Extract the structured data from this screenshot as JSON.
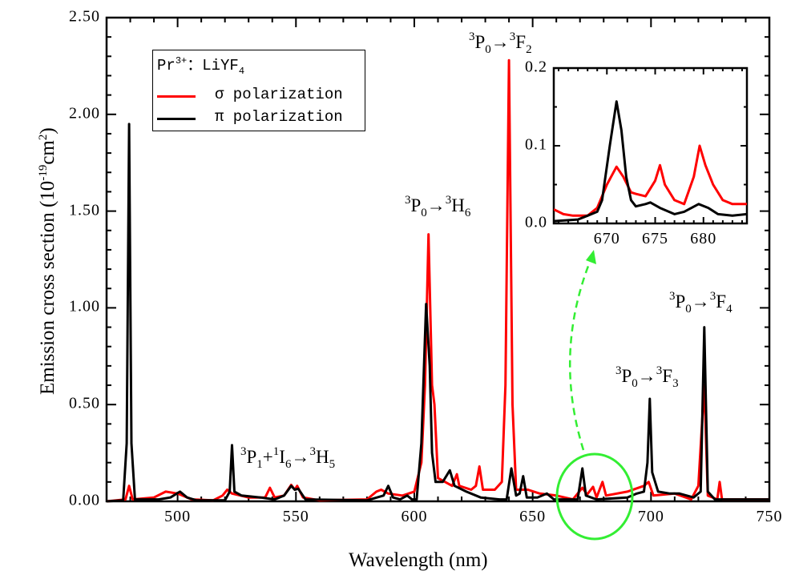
{
  "chart_data": {
    "type": "line",
    "xlabel": "Wavelength (nm)",
    "ylabel": {
      "main": "Emission cross section (10",
      "sup": "-19",
      "unit": "cm",
      "sup2": "2",
      "end": ")"
    },
    "xlim": [
      470,
      750
    ],
    "ylim": [
      0,
      2.5
    ],
    "xticks": [
      "500",
      "550",
      "600",
      "650",
      "700",
      "750"
    ],
    "yticks": [
      "0.00",
      "0.50",
      "1.00",
      "1.50",
      "2.00",
      "2.50"
    ],
    "grid": false,
    "legend": {
      "placement": "top-left",
      "title": {
        "base": "Pr",
        "sup": "3+",
        "mid": "：LiYF",
        "sub": "4"
      },
      "entries": [
        "σ  polarization",
        "π  polarization"
      ]
    },
    "series": [
      {
        "name": "σ polarization",
        "color": "#ff0000",
        "points": [
          [
            470,
            0
          ],
          [
            478,
            0.01
          ],
          [
            479.5,
            0.08
          ],
          [
            481,
            0.01
          ],
          [
            490,
            0.02
          ],
          [
            495,
            0.05
          ],
          [
            500,
            0.04
          ],
          [
            506,
            0.01
          ],
          [
            515,
            0.005
          ],
          [
            519,
            0.03
          ],
          [
            521,
            0.06
          ],
          [
            523,
            0.04
          ],
          [
            530,
            0.02
          ],
          [
            537,
            0.02
          ],
          [
            539,
            0.07
          ],
          [
            541,
            0.02
          ],
          [
            545,
            0.03
          ],
          [
            548,
            0.085
          ],
          [
            549.5,
            0.06
          ],
          [
            550.5,
            0.08
          ],
          [
            553,
            0.02
          ],
          [
            560,
            0.005
          ],
          [
            580,
            0.01
          ],
          [
            584,
            0.05
          ],
          [
            586,
            0.06
          ],
          [
            589,
            0.04
          ],
          [
            595,
            0.03
          ],
          [
            600,
            0.05
          ],
          [
            603,
            0.2
          ],
          [
            604.5,
            0.6
          ],
          [
            606,
            1.38
          ],
          [
            607.5,
            0.6
          ],
          [
            608.5,
            0.5
          ],
          [
            610,
            0.12
          ],
          [
            613,
            0.1
          ],
          [
            616,
            0.08
          ],
          [
            618,
            0.14
          ],
          [
            619,
            0.08
          ],
          [
            624,
            0.06
          ],
          [
            626,
            0.08
          ],
          [
            627.5,
            0.18
          ],
          [
            629,
            0.06
          ],
          [
            634,
            0.06
          ],
          [
            637,
            0.1
          ],
          [
            638.5,
            0.6
          ],
          [
            640,
            2.28
          ],
          [
            641.5,
            0.5
          ],
          [
            643,
            0.06
          ],
          [
            648,
            0.06
          ],
          [
            653,
            0.04
          ],
          [
            660,
            0.03
          ],
          [
            667,
            0.01
          ],
          [
            671,
            0.07
          ],
          [
            673,
            0.035
          ],
          [
            675.5,
            0.075
          ],
          [
            677,
            0.02
          ],
          [
            679.5,
            0.1
          ],
          [
            681,
            0.03
          ],
          [
            690,
            0.05
          ],
          [
            697,
            0.08
          ],
          [
            699,
            0.1
          ],
          [
            701,
            0.03
          ],
          [
            710,
            0.04
          ],
          [
            717,
            0.01
          ],
          [
            720,
            0.08
          ],
          [
            722.5,
            0.6
          ],
          [
            724,
            0.03
          ],
          [
            728,
            0.01
          ],
          [
            729,
            0.1
          ],
          [
            730,
            0.01
          ],
          [
            750,
            0.01
          ]
        ]
      },
      {
        "name": "π polarization",
        "color": "#000000",
        "points": [
          [
            470,
            0
          ],
          [
            477,
            0.005
          ],
          [
            478.5,
            0.3
          ],
          [
            479.5,
            1.95
          ],
          [
            480.5,
            0.3
          ],
          [
            482,
            0.01
          ],
          [
            492,
            0.01
          ],
          [
            497,
            0.02
          ],
          [
            501,
            0.05
          ],
          [
            504,
            0.02
          ],
          [
            508,
            0.005
          ],
          [
            520,
            0.005
          ],
          [
            522,
            0.05
          ],
          [
            523,
            0.29
          ],
          [
            524,
            0.05
          ],
          [
            527,
            0.03
          ],
          [
            535,
            0.02
          ],
          [
            541,
            0.01
          ],
          [
            545,
            0.03
          ],
          [
            548,
            0.08
          ],
          [
            549.5,
            0.06
          ],
          [
            551,
            0.065
          ],
          [
            554,
            0.01
          ],
          [
            580,
            0.005
          ],
          [
            587,
            0.03
          ],
          [
            589,
            0.08
          ],
          [
            591,
            0.02
          ],
          [
            594,
            0.01
          ],
          [
            597,
            0.03
          ],
          [
            599,
            0.01
          ],
          [
            601,
            0.01
          ],
          [
            603,
            0.3
          ],
          [
            605,
            1.02
          ],
          [
            606.5,
            0.7
          ],
          [
            607.5,
            0.25
          ],
          [
            609,
            0.1
          ],
          [
            612,
            0.1
          ],
          [
            615,
            0.16
          ],
          [
            617,
            0.08
          ],
          [
            622,
            0.05
          ],
          [
            628,
            0.02
          ],
          [
            636,
            0.01
          ],
          [
            639,
            0.01
          ],
          [
            641,
            0.17
          ],
          [
            643,
            0.03
          ],
          [
            644.5,
            0.04
          ],
          [
            646,
            0.13
          ],
          [
            647.5,
            0.02
          ],
          [
            652,
            0.02
          ],
          [
            656,
            0.04
          ],
          [
            659,
            0.01
          ],
          [
            669,
            0.01
          ],
          [
            671,
            0.17
          ],
          [
            672.5,
            0.03
          ],
          [
            677,
            0.01
          ],
          [
            690,
            0.02
          ],
          [
            694,
            0.04
          ],
          [
            697,
            0.05
          ],
          [
            698.5,
            0.2
          ],
          [
            699.5,
            0.53
          ],
          [
            700.5,
            0.15
          ],
          [
            703,
            0.05
          ],
          [
            708,
            0.04
          ],
          [
            712,
            0.04
          ],
          [
            718,
            0.02
          ],
          [
            721,
            0.05
          ],
          [
            722.5,
            0.9
          ],
          [
            724,
            0.05
          ],
          [
            727,
            0.01
          ],
          [
            750,
            0.01
          ]
        ]
      }
    ],
    "annotations": [
      {
        "parts": [
          "3",
          "P",
          "0",
          "→",
          "3",
          "F",
          "2"
        ]
      },
      {
        "parts": [
          "3",
          "P",
          "0",
          "→",
          "3",
          "H",
          "6"
        ]
      },
      {
        "parts": [
          "3",
          "P",
          "1",
          "+",
          "1",
          "I",
          "6",
          "→",
          "3",
          "H",
          "5"
        ]
      },
      {
        "parts": [
          "3",
          "P",
          "0",
          "→",
          "3",
          "F",
          "3"
        ]
      },
      {
        "parts": [
          "3",
          "P",
          "0",
          "→",
          "3",
          "F",
          "4"
        ]
      }
    ],
    "highlight": {
      "shape": "circle",
      "color": "#33ee33",
      "arrow": "dashed, to inset"
    },
    "inset": {
      "xlim": [
        664.5,
        684.5
      ],
      "ylim": [
        0,
        0.2
      ],
      "xticks": [
        "670",
        "675",
        "680"
      ],
      "yticks": [
        "0.0",
        "0.1",
        "0.2"
      ],
      "series": [
        {
          "name": "σ polarization",
          "color": "#ff0000",
          "points": [
            [
              664.5,
              0.018
            ],
            [
              665.5,
              0.012
            ],
            [
              666.5,
              0.01
            ],
            [
              668,
              0.01
            ],
            [
              669,
              0.02
            ],
            [
              670,
              0.05
            ],
            [
              671,
              0.073
            ],
            [
              671.7,
              0.06
            ],
            [
              672.5,
              0.04
            ],
            [
              673,
              0.038
            ],
            [
              674,
              0.035
            ],
            [
              675,
              0.055
            ],
            [
              675.5,
              0.075
            ],
            [
              676,
              0.05
            ],
            [
              677,
              0.03
            ],
            [
              678,
              0.025
            ],
            [
              679,
              0.06
            ],
            [
              679.6,
              0.1
            ],
            [
              680.2,
              0.075
            ],
            [
              681,
              0.05
            ],
            [
              682,
              0.03
            ],
            [
              683,
              0.025
            ],
            [
              684.5,
              0.025
            ]
          ]
        },
        {
          "name": "π polarization",
          "color": "#000000",
          "points": [
            [
              664.5,
              0.003
            ],
            [
              667,
              0.005
            ],
            [
              668,
              0.01
            ],
            [
              669,
              0.015
            ],
            [
              669.5,
              0.03
            ],
            [
              670.3,
              0.1
            ],
            [
              671,
              0.157
            ],
            [
              671.5,
              0.12
            ],
            [
              672,
              0.06
            ],
            [
              672.5,
              0.03
            ],
            [
              673,
              0.022
            ],
            [
              674,
              0.025
            ],
            [
              674.5,
              0.027
            ],
            [
              675.5,
              0.02
            ],
            [
              677,
              0.012
            ],
            [
              678,
              0.015
            ],
            [
              679.5,
              0.025
            ],
            [
              680.5,
              0.02
            ],
            [
              681.5,
              0.012
            ],
            [
              683,
              0.01
            ],
            [
              684.5,
              0.012
            ]
          ]
        }
      ]
    }
  }
}
